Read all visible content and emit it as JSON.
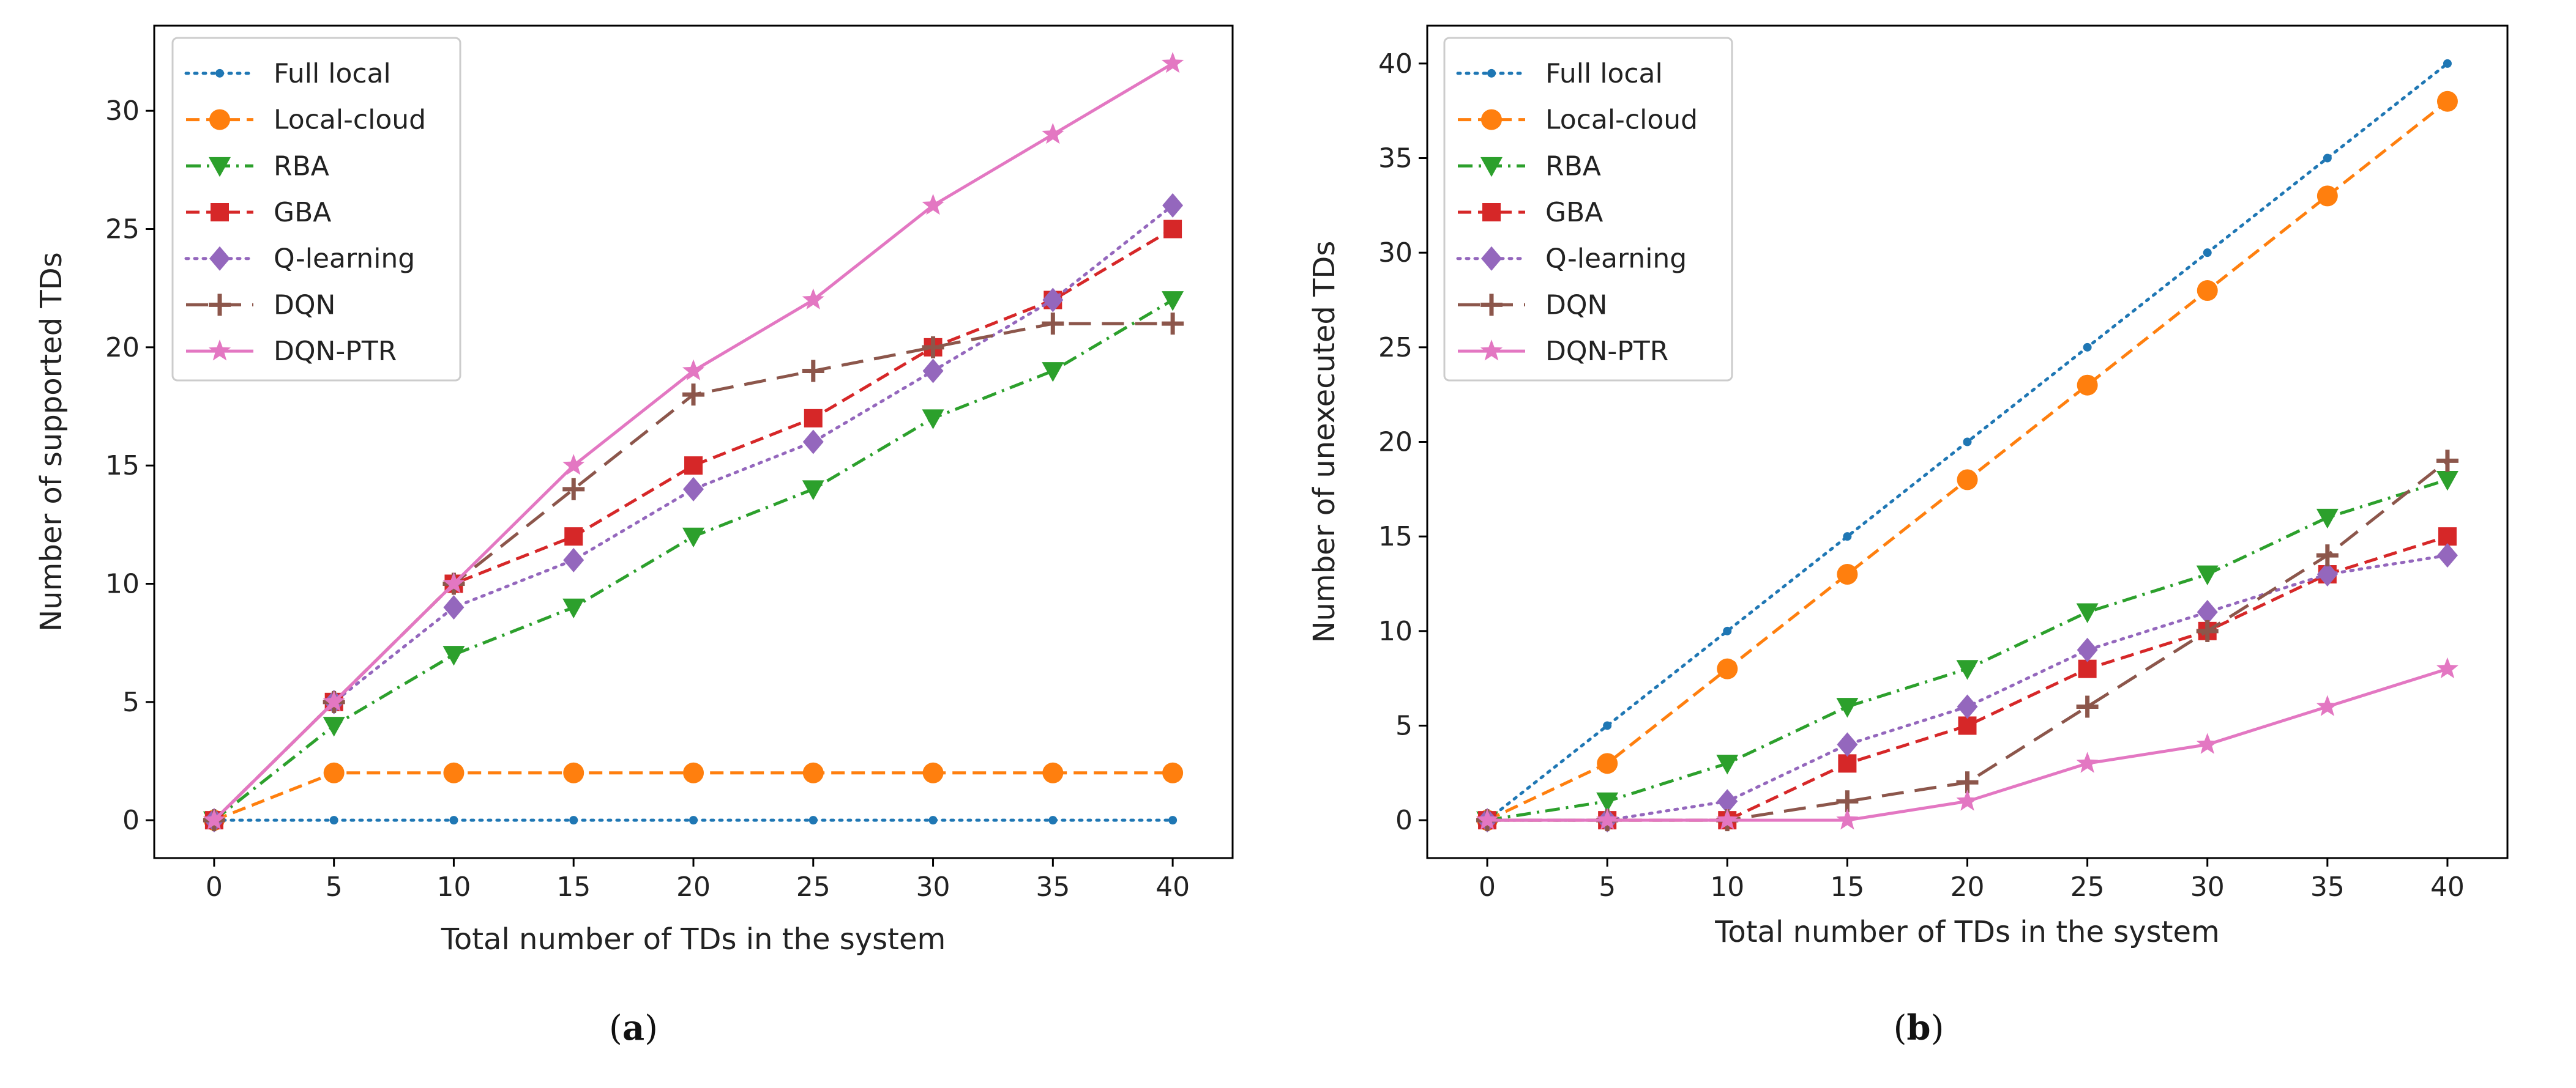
{
  "captions": {
    "a": {
      "letter": "a"
    },
    "b": {
      "letter": "b"
    }
  },
  "chart_data": [
    {
      "id": "a",
      "type": "line",
      "xlabel": "Total number of TDs in the system",
      "ylabel": "Number of supported TDs",
      "x": [
        0,
        5,
        10,
        15,
        20,
        25,
        30,
        35,
        40
      ],
      "xlim": [
        -2.5,
        42.5
      ],
      "ylim": [
        -1.6,
        33.6
      ],
      "xticks": [
        0,
        5,
        10,
        15,
        20,
        25,
        30,
        35,
        40
      ],
      "yticks": [
        0,
        5,
        10,
        15,
        20,
        25,
        30
      ],
      "legend": "top-left",
      "series": [
        {
          "name": "Full local",
          "color": "#1f77b4",
          "dash": "dotted",
          "marker": "point",
          "values": [
            0,
            0,
            0,
            0,
            0,
            0,
            0,
            0,
            0
          ]
        },
        {
          "name": "Local-cloud",
          "color": "#ff7f0e",
          "dash": "dashed",
          "marker": "circle",
          "values": [
            0,
            2,
            2,
            2,
            2,
            2,
            2,
            2,
            2
          ]
        },
        {
          "name": "RBA",
          "color": "#2ca02c",
          "dash": "dashdot",
          "marker": "triangle_down",
          "values": [
            0,
            4,
            7,
            9,
            12,
            14,
            17,
            19,
            22
          ]
        },
        {
          "name": "GBA",
          "color": "#d62728",
          "dash": "dashed",
          "marker": "square",
          "values": [
            0,
            5,
            10,
            12,
            15,
            17,
            20,
            22,
            25
          ]
        },
        {
          "name": "Q-learning",
          "color": "#9467bd",
          "dash": "dotted",
          "marker": "diamond",
          "values": [
            0,
            5,
            9,
            11,
            14,
            16,
            19,
            22,
            26
          ]
        },
        {
          "name": "DQN",
          "color": "#8c564b",
          "dash": "longdash",
          "marker": "plus",
          "values": [
            0,
            5,
            10,
            14,
            18,
            19,
            20,
            21,
            21
          ]
        },
        {
          "name": "DQN-PTR",
          "color": "#e377c2",
          "dash": "solid",
          "marker": "star",
          "values": [
            0,
            5,
            10,
            15,
            19,
            22,
            26,
            29,
            32
          ]
        }
      ]
    },
    {
      "id": "b",
      "type": "line",
      "xlabel": "Total number of TDs in the system",
      "ylabel": "Number of unexecuted TDs",
      "x": [
        0,
        5,
        10,
        15,
        20,
        25,
        30,
        35,
        40
      ],
      "xlim": [
        -2.5,
        42.5
      ],
      "ylim": [
        -2,
        42
      ],
      "xticks": [
        0,
        5,
        10,
        15,
        20,
        25,
        30,
        35,
        40
      ],
      "yticks": [
        0,
        5,
        10,
        15,
        20,
        25,
        30,
        35,
        40
      ],
      "legend": "top-left",
      "series": [
        {
          "name": "Full local",
          "color": "#1f77b4",
          "dash": "dotted",
          "marker": "point",
          "values": [
            0,
            5,
            10,
            15,
            20,
            25,
            30,
            35,
            40
          ]
        },
        {
          "name": "Local-cloud",
          "color": "#ff7f0e",
          "dash": "dashed",
          "marker": "circle",
          "values": [
            0,
            3,
            8,
            13,
            18,
            23,
            28,
            33,
            38
          ]
        },
        {
          "name": "RBA",
          "color": "#2ca02c",
          "dash": "dashdot",
          "marker": "triangle_down",
          "values": [
            0,
            1,
            3,
            6,
            8,
            11,
            13,
            16,
            18
          ]
        },
        {
          "name": "GBA",
          "color": "#d62728",
          "dash": "dashed",
          "marker": "square",
          "values": [
            0,
            0,
            0,
            3,
            5,
            8,
            10,
            13,
            15
          ]
        },
        {
          "name": "Q-learning",
          "color": "#9467bd",
          "dash": "dotted",
          "marker": "diamond",
          "values": [
            0,
            0,
            1,
            4,
            6,
            9,
            11,
            13,
            14
          ]
        },
        {
          "name": "DQN",
          "color": "#8c564b",
          "dash": "longdash",
          "marker": "plus",
          "values": [
            0,
            0,
            0,
            1,
            2,
            6,
            10,
            14,
            19
          ]
        },
        {
          "name": "DQN-PTR",
          "color": "#e377c2",
          "dash": "solid",
          "marker": "star",
          "values": [
            0,
            0,
            0,
            0,
            1,
            3,
            4,
            6,
            8
          ]
        }
      ]
    }
  ]
}
